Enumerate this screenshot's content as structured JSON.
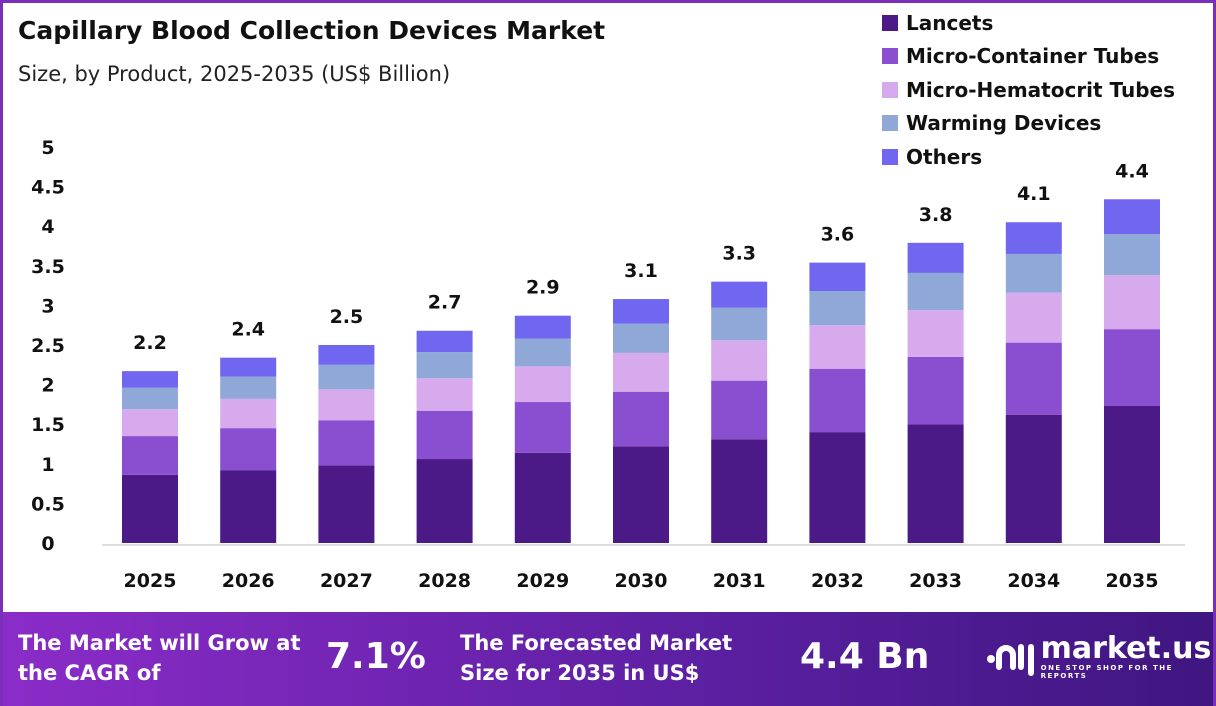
{
  "chart_data": {
    "type": "bar",
    "stacked": true,
    "title": "Capillary Blood Collection Devices Market",
    "subtitle": "Size, by Product, 2025-2035 (US$ Billion)",
    "categories": [
      "2025",
      "2026",
      "2027",
      "2028",
      "2029",
      "2030",
      "2031",
      "2032",
      "2033",
      "2034",
      "2035"
    ],
    "series": [
      {
        "name": "Lancets",
        "color": "#4b1a87",
        "values": [
          0.86,
          0.92,
          0.98,
          1.06,
          1.14,
          1.22,
          1.31,
          1.4,
          1.5,
          1.62,
          1.73
        ]
      },
      {
        "name": "Micro-Container Tubes",
        "color": "#8a4fd0",
        "values": [
          0.49,
          0.53,
          0.57,
          0.61,
          0.64,
          0.69,
          0.74,
          0.8,
          0.85,
          0.91,
          0.97
        ]
      },
      {
        "name": "Micro-Hematocrit Tubes",
        "color": "#d6aaed",
        "values": [
          0.34,
          0.37,
          0.39,
          0.41,
          0.45,
          0.49,
          0.51,
          0.55,
          0.59,
          0.63,
          0.68
        ]
      },
      {
        "name": "Warming Devices",
        "color": "#8fa8d8",
        "values": [
          0.27,
          0.28,
          0.31,
          0.33,
          0.35,
          0.37,
          0.41,
          0.43,
          0.47,
          0.49,
          0.52
        ]
      },
      {
        "name": "Others",
        "color": "#7066f0",
        "values": [
          0.21,
          0.24,
          0.25,
          0.27,
          0.29,
          0.31,
          0.33,
          0.36,
          0.38,
          0.4,
          0.44
        ]
      }
    ],
    "totals": [
      "2.2",
      "2.4",
      "2.5",
      "2.7",
      "2.9",
      "3.1",
      "3.3",
      "3.6",
      "3.8",
      "4.1",
      "4.4"
    ],
    "yticks": [
      "0",
      "0.5",
      "1",
      "1.5",
      "2",
      "2.5",
      "3",
      "3.5",
      "4",
      "4.5",
      "5"
    ],
    "ylim": [
      0,
      5
    ],
    "grid": false,
    "legend": "top-right"
  },
  "footer": {
    "cagr_label": "The Market will Grow at the CAGR of",
    "cagr_value": "7.1%",
    "forecast_label": "The Forecasted Market Size for 2035 in US$",
    "forecast_value": "4.4 Bn",
    "logo_name": "market.us",
    "logo_tagline": "ONE STOP SHOP FOR THE REPORTS"
  }
}
